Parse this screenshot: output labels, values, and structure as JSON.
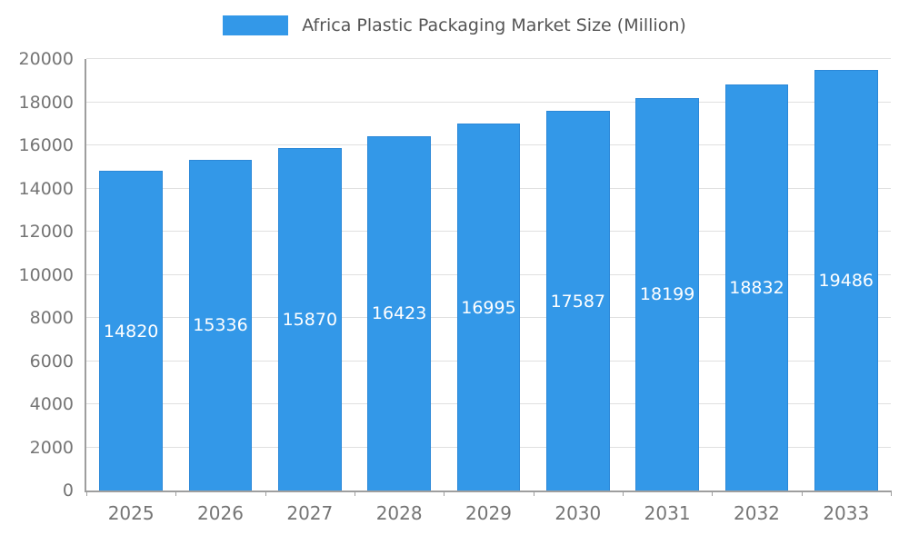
{
  "chart_data": {
    "type": "bar",
    "title": "Africa Plastic Packaging Market Size (Million)",
    "categories": [
      "2025",
      "2026",
      "2027",
      "2028",
      "2029",
      "2030",
      "2031",
      "2032",
      "2033"
    ],
    "values": [
      14820,
      15336,
      15870,
      16423,
      16995,
      17587,
      18199,
      18832,
      19486
    ],
    "xlabel": "",
    "ylabel": "",
    "ylim": [
      0,
      20000
    ],
    "yticks": [
      0,
      2000,
      4000,
      6000,
      8000,
      10000,
      12000,
      14000,
      16000,
      18000,
      20000
    ],
    "grid": true,
    "legend_position": "top-center",
    "bar_label_position": "center",
    "colors": {
      "bar_fill": "#3398e8",
      "bar_border": "#2b88d8",
      "bar_label": "#ffffff",
      "axis_text": "#757575",
      "title_text": "#555555",
      "grid_line": "#e0e0e0",
      "axis_line": "#9e9e9e",
      "background": "#ffffff"
    }
  }
}
